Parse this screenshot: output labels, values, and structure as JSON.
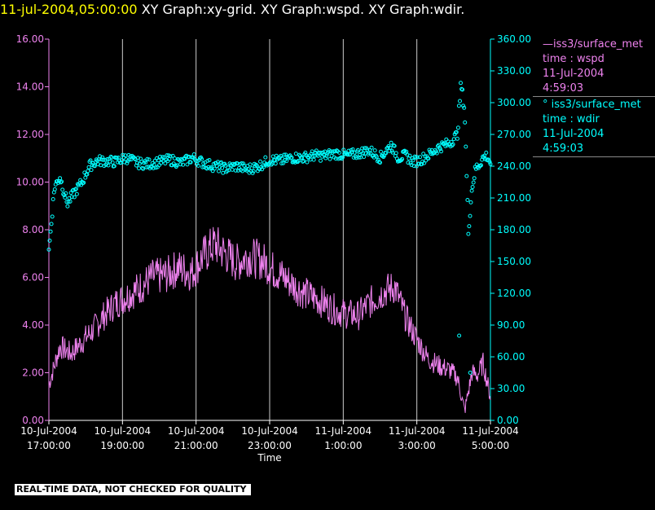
{
  "header": {
    "timestamp": "11-jul-2004,05:00:00",
    "titles": [
      "XY Graph:xy-grid.",
      "XY Graph:wspd.",
      "XY Graph:wdir."
    ]
  },
  "legend": [
    {
      "line1": "—iss3/surface_met",
      "line2": "time : wspd",
      "line3": "11-Jul-2004",
      "line4": "4:59:03",
      "color": "#ee82ee"
    },
    {
      "line1": "° iss3/surface_met",
      "line2": "time : wdir",
      "line3": "11-Jul-2004",
      "line4": "4:59:03",
      "color": "#00ffff"
    }
  ],
  "notice": "REAL-TIME DATA, NOT CHECKED FOR QUALITY",
  "chart_data": {
    "type": "line",
    "xlabel": "Time",
    "x_range_hours": [
      17.0,
      29.0
    ],
    "x_ticks": [
      {
        "date": "10-Jul-2004",
        "time": "17:00:00"
      },
      {
        "date": "10-Jul-2004",
        "time": "19:00:00"
      },
      {
        "date": "10-Jul-2004",
        "time": "21:00:00"
      },
      {
        "date": "10-Jul-2004",
        "time": "23:00:00"
      },
      {
        "date": "11-Jul-2004",
        "time": "1:00:00"
      },
      {
        "date": "11-Jul-2004",
        "time": "3:00:00"
      },
      {
        "date": "11-Jul-2004",
        "time": "5:00:00"
      }
    ],
    "grid": "vertical",
    "y_left": {
      "ylim": [
        0,
        16
      ],
      "ticks": [
        "0.00",
        "2.00",
        "4.00",
        "6.00",
        "8.00",
        "10.00",
        "12.00",
        "14.00",
        "16.00"
      ],
      "color": "#ee82ee"
    },
    "y_right": {
      "ylim": [
        0,
        360
      ],
      "ticks": [
        "0.00",
        "30.00",
        "60.00",
        "90.00",
        "120.00",
        "150.00",
        "180.00",
        "210.00",
        "240.00",
        "270.00",
        "300.00",
        "330.00",
        "360.00"
      ],
      "color": "#00ffff"
    },
    "series": [
      {
        "name": "iss3/surface_met time : wspd",
        "axis": "left",
        "style": "line",
        "color": "#ee82ee",
        "x": [
          17.0,
          17.3,
          17.6,
          17.9,
          18.2,
          18.5,
          18.8,
          19.1,
          19.5,
          19.8,
          20.2,
          20.5,
          20.9,
          21.2,
          21.5,
          21.8,
          22.1,
          22.4,
          22.8,
          23.1,
          23.4,
          23.7,
          24.0,
          24.4,
          24.7,
          25.0,
          25.4,
          25.7,
          26.1,
          26.4,
          26.7,
          27.0,
          27.3,
          27.6,
          27.9,
          28.1,
          28.3,
          28.5,
          28.65,
          28.8,
          29.0
        ],
        "y": [
          1.5,
          3.1,
          2.8,
          3.3,
          3.8,
          4.4,
          4.9,
          5.2,
          5.6,
          6.0,
          6.1,
          6.4,
          6.2,
          6.9,
          7.4,
          7.0,
          6.6,
          6.9,
          6.7,
          6.3,
          6.0,
          5.6,
          5.3,
          5.0,
          4.7,
          4.5,
          4.4,
          4.9,
          5.4,
          5.6,
          4.3,
          3.4,
          2.6,
          2.3,
          2.1,
          1.8,
          0.4,
          2.0,
          1.9,
          2.4,
          1.0
        ]
      },
      {
        "name": "iss3/surface_met time : wdir",
        "axis": "right",
        "style": "scatter",
        "color": "#00ffff",
        "x": [
          17.0,
          17.15,
          17.3,
          17.5,
          17.7,
          17.9,
          18.1,
          18.3,
          18.5,
          18.8,
          19.1,
          19.4,
          19.7,
          20.0,
          20.3,
          20.6,
          20.9,
          21.2,
          21.5,
          21.8,
          22.1,
          22.4,
          22.7,
          23.0,
          23.3,
          23.6,
          23.9,
          24.2,
          24.5,
          24.8,
          25.1,
          25.4,
          25.7,
          26.0,
          26.3,
          26.5,
          26.7,
          26.9,
          27.1,
          27.3,
          27.6,
          27.9,
          28.1,
          28.2,
          28.3,
          28.4,
          28.5,
          28.6,
          28.7,
          28.8,
          28.9,
          29.0
        ],
        "y": [
          160,
          220,
          230,
          205,
          215,
          225,
          240,
          245,
          245,
          244,
          248,
          243,
          242,
          244,
          246,
          243,
          248,
          243,
          240,
          238,
          240,
          237,
          240,
          246,
          245,
          248,
          248,
          250,
          250,
          252,
          250,
          252,
          255,
          248,
          260,
          248,
          250,
          244,
          246,
          250,
          258,
          262,
          270,
          318,
          292,
          178,
          220,
          238,
          242,
          248,
          250,
          243
        ]
      }
    ]
  }
}
